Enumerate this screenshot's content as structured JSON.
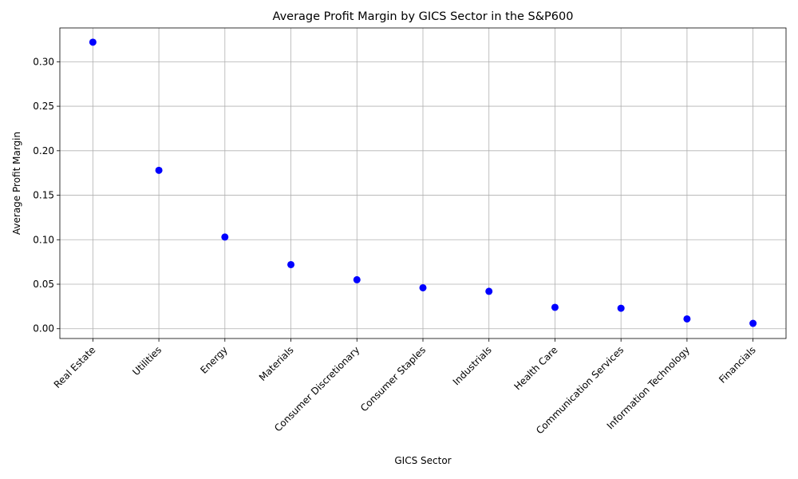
{
  "chart_data": {
    "type": "scatter",
    "title": "Average Profit Margin by GICS Sector in the S&P600",
    "xlabel": "GICS Sector",
    "ylabel": "Average Profit Margin",
    "categories": [
      "Real Estate",
      "Utilities",
      "Energy",
      "Materials",
      "Consumer Discretionary",
      "Consumer Staples",
      "Industrials",
      "Health Care",
      "Communication Services",
      "Information Technology",
      "Financials"
    ],
    "series": [
      {
        "values": [
          0.322,
          0.178,
          0.103,
          0.072,
          0.055,
          0.046,
          0.042,
          0.024,
          0.023,
          0.011,
          0.006
        ]
      }
    ],
    "ylim": [
      -0.011,
      0.338
    ],
    "yticks": [
      "0.00",
      "0.05",
      "0.10",
      "0.15",
      "0.20",
      "0.25",
      "0.30"
    ],
    "grid": true,
    "marker_color": "#0000ff"
  }
}
